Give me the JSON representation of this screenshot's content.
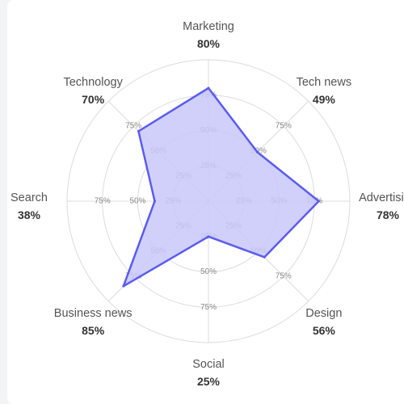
{
  "chart_data": {
    "type": "radar",
    "max_value": 100,
    "ring_levels": [
      25,
      50,
      75,
      100
    ],
    "tick_levels": [
      25,
      50,
      75
    ],
    "tick_label_suffix": "%",
    "grid": true,
    "fill_color": "#c8c8fa",
    "stroke_color": "#5b5bf0",
    "grid_color": "#dcdcdc",
    "series": [
      {
        "values": [
          80,
          49,
          78,
          56,
          25,
          85,
          38,
          70
        ]
      }
    ],
    "axes": [
      {
        "label": "Marketing",
        "value_label": "80%"
      },
      {
        "label": "Tech news",
        "value_label": "49%"
      },
      {
        "label": "Advertising",
        "value_label": "78%"
      },
      {
        "label": "Design",
        "value_label": "56%"
      },
      {
        "label": "Social",
        "value_label": "25%"
      },
      {
        "label": "Business news",
        "value_label": "85%"
      },
      {
        "label": "Search",
        "value_label": "38%"
      },
      {
        "label": "Technology",
        "value_label": "70%"
      }
    ]
  }
}
